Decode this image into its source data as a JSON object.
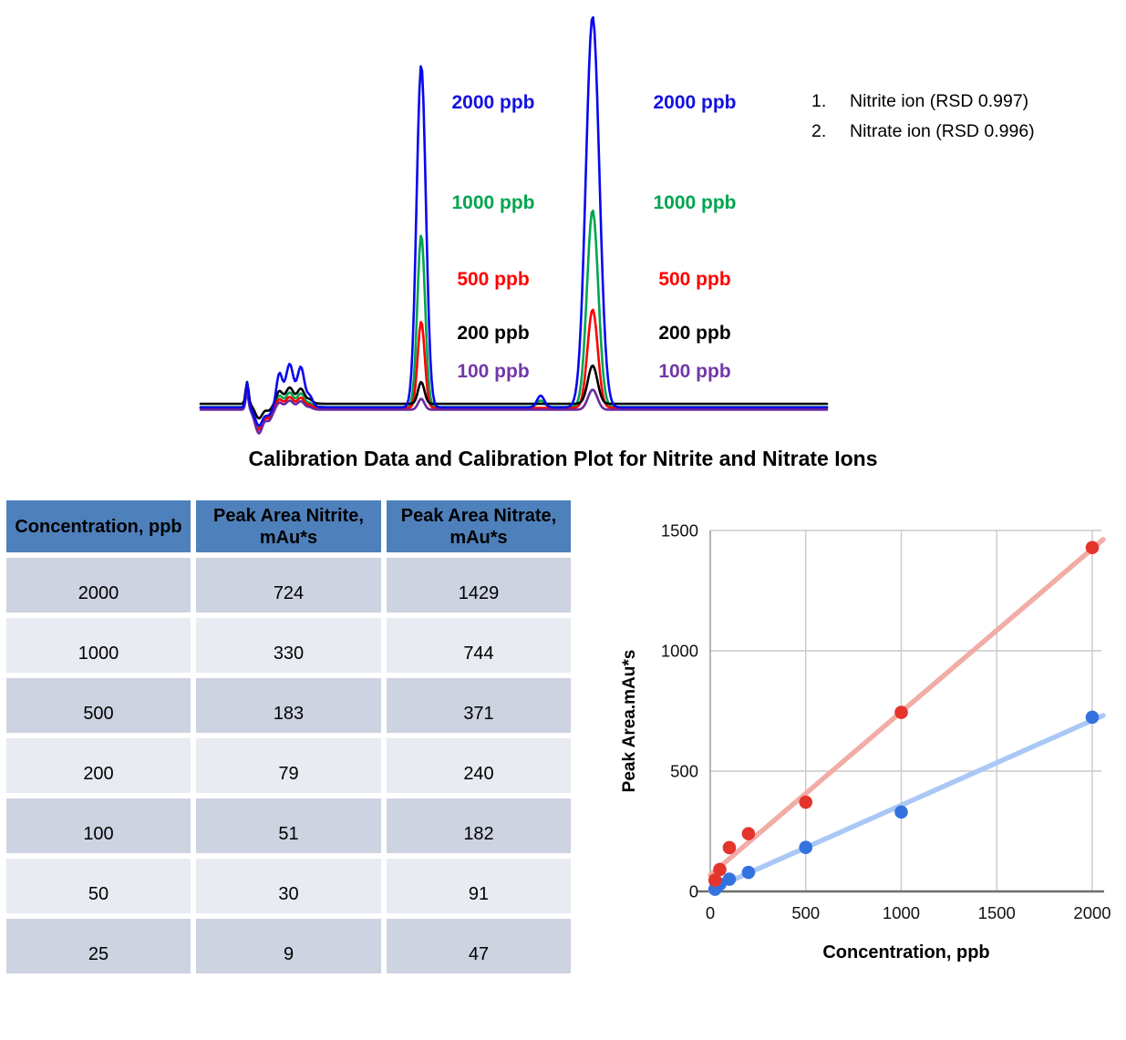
{
  "title": "Calibration Data and Calibration Plot for Nitrite and Nitrate Ions",
  "legend": {
    "items": [
      {
        "num": "1.",
        "text": "Nitrite ion (RSD 0.997)"
      },
      {
        "num": "2.",
        "text": "Nitrate ion (RSD 0.996)"
      }
    ]
  },
  "chromatogram": {
    "labels": [
      {
        "text": "2000 ppb",
        "color": "#1212DF"
      },
      {
        "text": "1000 ppb",
        "color": "#00A550"
      },
      {
        "text": "500 ppb",
        "color": "#FF0000"
      },
      {
        "text": "200 ppb",
        "color": "#000000"
      },
      {
        "text": "100 ppb",
        "color": "#7238A8"
      }
    ]
  },
  "table": {
    "headers": [
      "Concentration, ppb",
      "Peak Area Nitrite, mAu*s",
      "Peak Area Nitrate, mAu*s"
    ],
    "rows": [
      [
        "2000",
        "724",
        "1429"
      ],
      [
        "1000",
        "330",
        "744"
      ],
      [
        "500",
        "183",
        "371"
      ],
      [
        "200",
        "79",
        "240"
      ],
      [
        "100",
        "51",
        "182"
      ],
      [
        "50",
        "30",
        "91"
      ],
      [
        "25",
        "9",
        "47"
      ]
    ]
  },
  "chart_data": [
    {
      "type": "line",
      "description": "Overlaid anion chromatograms; peak 1 = Nitrite ion, peak 2 = Nitrate ion",
      "peak_labels": [
        "Nitrite ion",
        "Nitrate ion"
      ],
      "series": [
        {
          "name": "2000 ppb",
          "color": "#0707F0",
          "px": {
            "off": 0,
            "p1": 376,
            "p2": 429,
            "spike": 28,
            "dip": 20,
            "hump": 48,
            "bump": 13
          }
        },
        {
          "name": "1000 ppb",
          "color": "#00A550",
          "px": {
            "off": -0.5,
            "p1": 189,
            "p2": 216,
            "spike": 16,
            "dip": 22,
            "hump": 16,
            "bump": 7
          }
        },
        {
          "name": "500 ppb",
          "color": "#FF0000",
          "px": {
            "off": 0.5,
            "p1": 95,
            "p2": 108,
            "spike": 18,
            "dip": 24,
            "hump": 12,
            "bump": 0
          }
        },
        {
          "name": "200 ppb",
          "color": "#000000",
          "px": {
            "off": -4,
            "p1": 24,
            "p2": 42,
            "spike": 24,
            "dip": 16,
            "hump": 18,
            "bump": 0
          }
        },
        {
          "name": "100 ppb",
          "color": "#6A28A0",
          "px": {
            "off": 2.5,
            "p1": 12,
            "p2": 22,
            "spike": 18,
            "dip": 26,
            "hump": 10,
            "bump": 0
          }
        }
      ]
    },
    {
      "type": "scatter",
      "xlabel": "Concentration, ppb",
      "ylabel": "Peak Area.mAu*s",
      "x": [
        25,
        50,
        100,
        200,
        500,
        1000,
        2000
      ],
      "series": [
        {
          "name": "Peak Area Nitrite, mAu*s",
          "color": "#3472DE",
          "trend_color": "#AAC8F5",
          "values": [
            9,
            30,
            51,
            79,
            183,
            330,
            724
          ],
          "trend": {
            "slope": 0.3527,
            "intercept": 5.6
          }
        },
        {
          "name": "Peak Area Nitrate, mAu*s",
          "color": "#E4352C",
          "trend_color": "#F2ACA6",
          "values": [
            47,
            91,
            182,
            240,
            371,
            744,
            1429
          ],
          "trend": {
            "slope": 0.678,
            "intercept": 68
          }
        }
      ],
      "x_ticks": [
        0,
        500,
        1000,
        1500,
        2000
      ],
      "y_ticks": [
        0,
        500,
        1000,
        1500
      ],
      "xlim": [
        0,
        2057
      ],
      "ylim": [
        0,
        1500
      ],
      "grid": true,
      "legend_position": "none"
    }
  ]
}
